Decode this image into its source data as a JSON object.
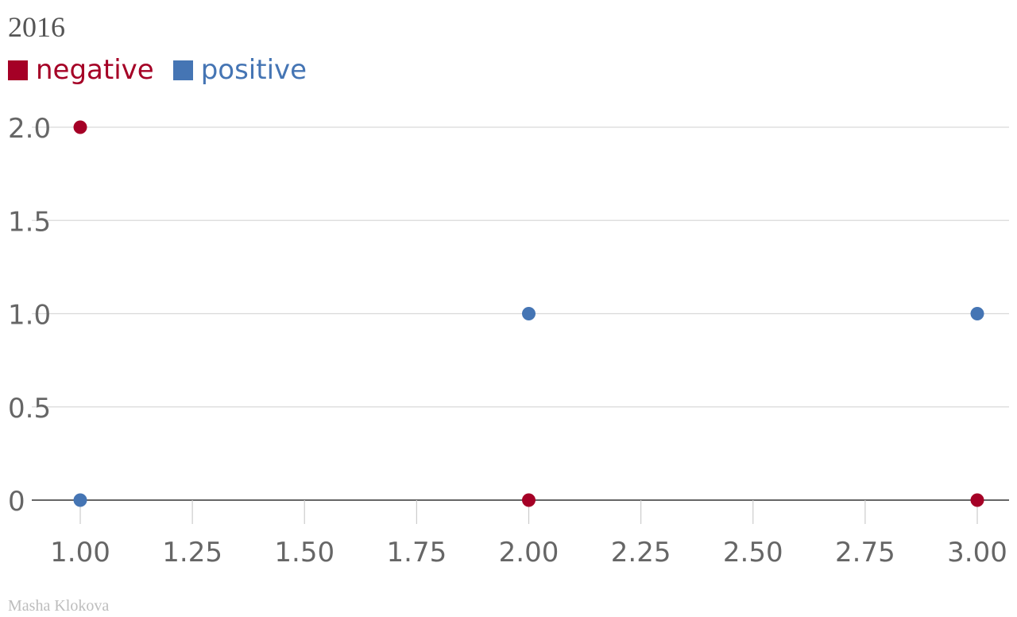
{
  "chart_data": {
    "type": "scatter",
    "title": "2016",
    "xlabel": "",
    "ylabel": "",
    "xlim": [
      0.89,
      3.07
    ],
    "ylim": [
      0,
      2.0
    ],
    "x_ticks": [
      "1.00",
      "1.25",
      "1.50",
      "1.75",
      "2.00",
      "2.25",
      "2.50",
      "2.75",
      "3.00"
    ],
    "x_tick_values": [
      1.0,
      1.25,
      1.5,
      1.75,
      2.0,
      2.25,
      2.5,
      2.75,
      3.0
    ],
    "y_ticks": [
      "0",
      "0.5",
      "1.0",
      "1.5",
      "2.0"
    ],
    "y_tick_values": [
      0,
      0.5,
      1.0,
      1.5,
      2.0
    ],
    "grid": "horizontal",
    "legend_position": "top-left",
    "series": [
      {
        "name": "negative",
        "color": "#a50026",
        "points": [
          {
            "x": 1,
            "y": 2
          },
          {
            "x": 2,
            "y": 0
          },
          {
            "x": 3,
            "y": 0
          }
        ]
      },
      {
        "name": "positive",
        "color": "#4575b4",
        "points": [
          {
            "x": 1,
            "y": 0
          },
          {
            "x": 2,
            "y": 1
          },
          {
            "x": 3,
            "y": 1
          }
        ]
      }
    ],
    "credit": "Masha Klokova"
  }
}
